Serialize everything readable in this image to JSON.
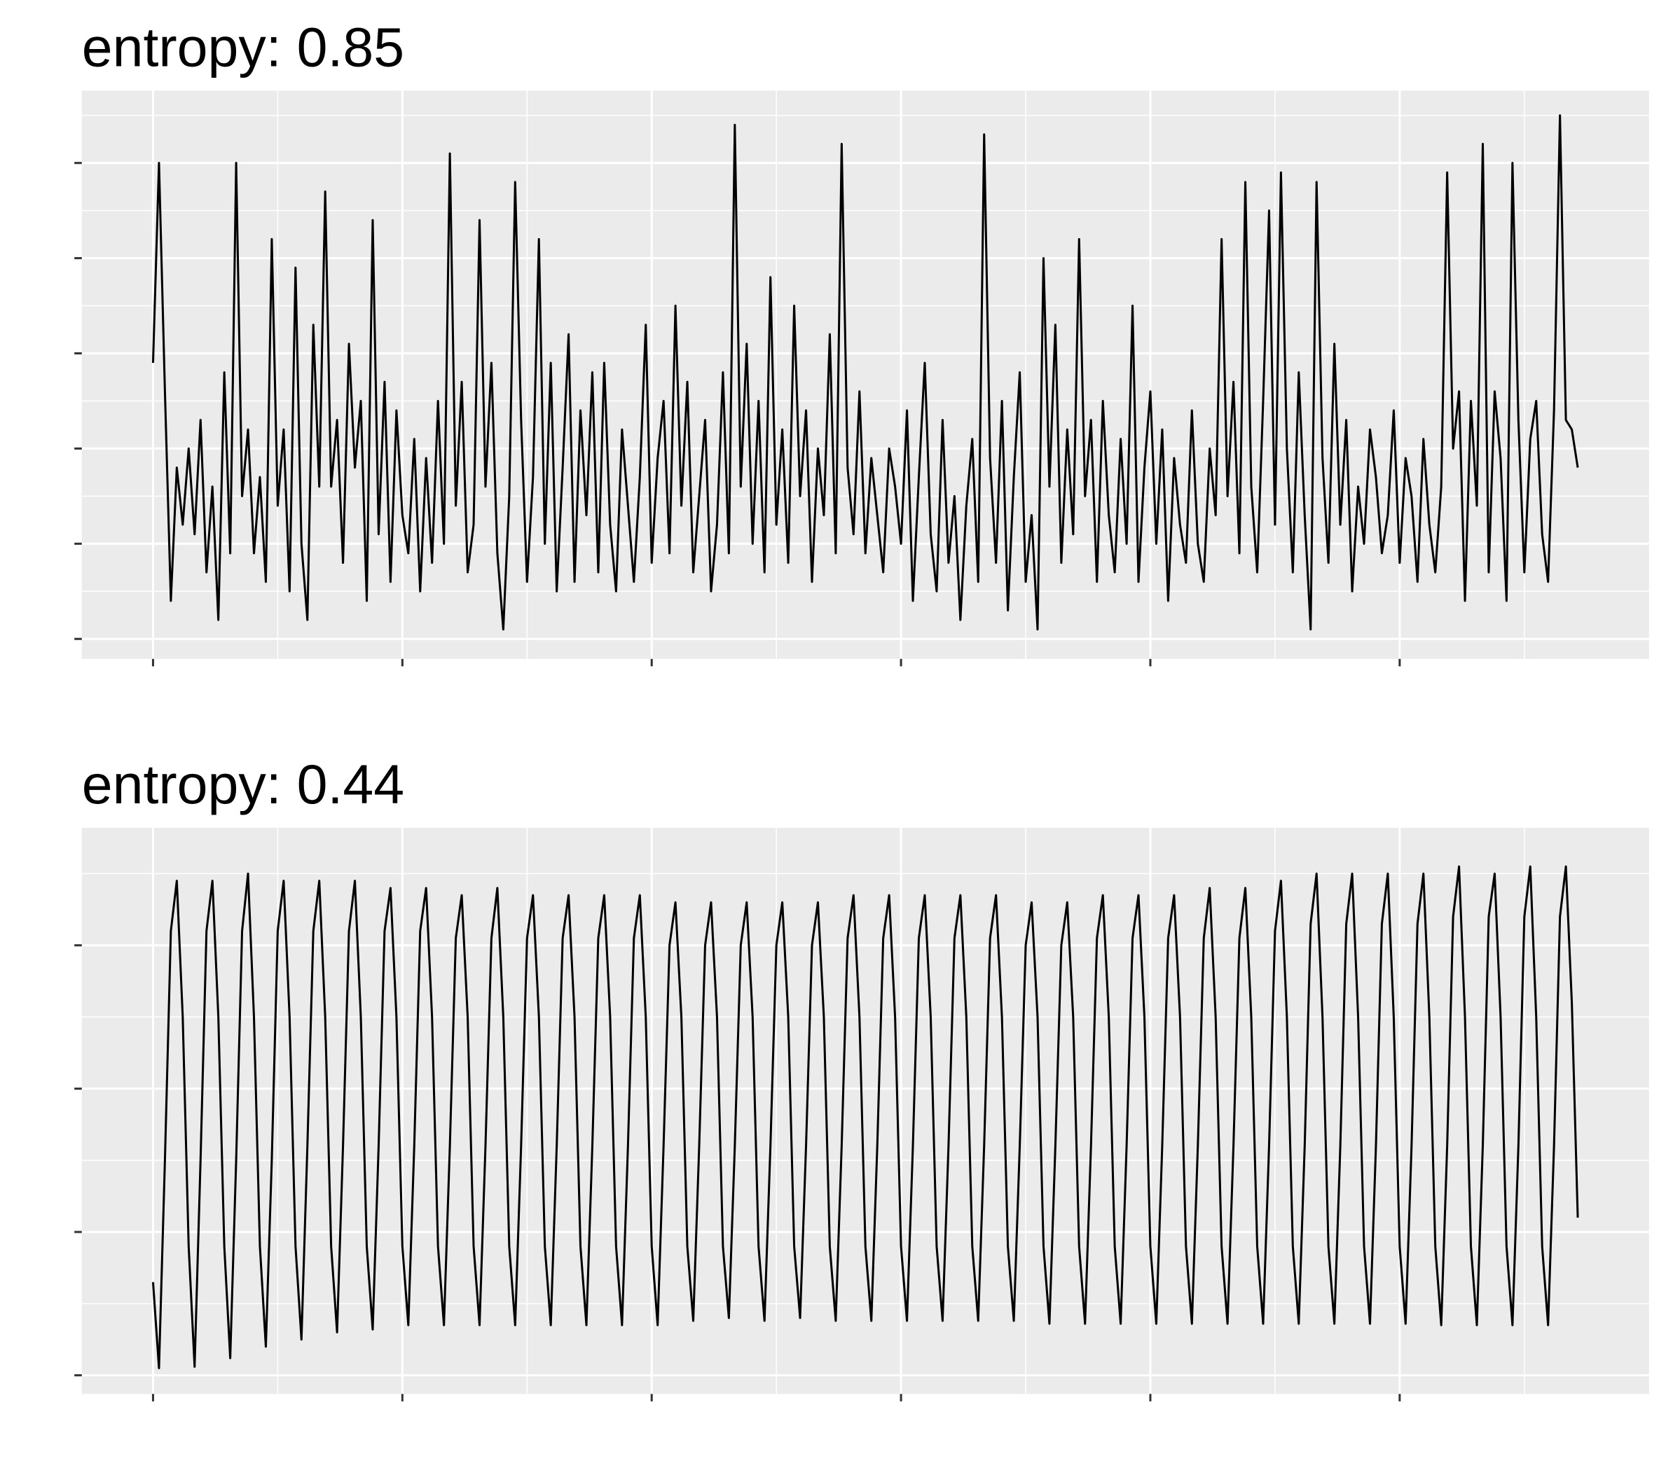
{
  "chart_data": [
    {
      "type": "line",
      "title": "entropy: 0.85",
      "color": "#000000",
      "grid": true,
      "xlim": [
        -12,
        252
      ],
      "xticks": [
        0,
        42,
        84,
        126,
        168,
        210
      ],
      "ylim": [
        -0.21,
        5.76
      ],
      "yticks": [
        0,
        1,
        2,
        3,
        4,
        5
      ],
      "values": [
        2.9,
        5.0,
        2.6,
        0.4,
        1.8,
        1.2,
        2.0,
        1.1,
        2.3,
        0.7,
        1.6,
        0.2,
        2.8,
        0.9,
        5.0,
        1.5,
        2.2,
        0.9,
        1.7,
        0.6,
        4.2,
        1.4,
        2.2,
        0.5,
        3.9,
        1.0,
        0.2,
        3.3,
        1.6,
        4.7,
        1.6,
        2.3,
        0.8,
        3.1,
        1.8,
        2.5,
        0.4,
        4.4,
        1.1,
        2.7,
        0.6,
        2.4,
        1.3,
        0.9,
        2.1,
        0.5,
        1.9,
        0.8,
        2.5,
        1.0,
        5.1,
        1.4,
        2.7,
        0.7,
        1.2,
        4.4,
        1.6,
        2.9,
        0.9,
        0.1,
        1.5,
        4.8,
        2.3,
        0.6,
        1.7,
        4.2,
        1.0,
        2.9,
        0.5,
        1.8,
        3.2,
        0.6,
        2.4,
        1.3,
        2.8,
        0.7,
        2.9,
        1.2,
        0.5,
        2.2,
        1.4,
        0.6,
        1.7,
        3.3,
        0.8,
        1.9,
        2.5,
        0.9,
        3.5,
        1.4,
        2.7,
        0.7,
        1.5,
        2.3,
        0.5,
        1.2,
        2.8,
        0.9,
        5.4,
        1.6,
        3.1,
        1.0,
        2.5,
        0.7,
        3.8,
        1.2,
        2.2,
        0.8,
        3.5,
        1.5,
        2.4,
        0.6,
        2.0,
        1.3,
        3.2,
        0.9,
        5.2,
        1.8,
        1.1,
        2.6,
        0.9,
        1.9,
        1.3,
        0.7,
        2.0,
        1.6,
        1.0,
        2.4,
        0.4,
        1.7,
        2.9,
        1.1,
        0.5,
        2.3,
        0.8,
        1.5,
        0.2,
        1.4,
        2.1,
        0.6,
        5.3,
        1.9,
        0.8,
        2.5,
        0.3,
        1.7,
        2.8,
        0.6,
        1.3,
        0.1,
        4.0,
        1.6,
        3.3,
        0.8,
        2.2,
        1.1,
        4.2,
        1.5,
        2.3,
        0.6,
        2.5,
        1.3,
        0.7,
        2.1,
        1.0,
        3.5,
        0.6,
        1.8,
        2.6,
        1.0,
        2.2,
        0.4,
        1.9,
        1.2,
        0.8,
        2.4,
        1.0,
        0.6,
        2.0,
        1.3,
        4.2,
        1.5,
        2.7,
        0.9,
        4.8,
        1.6,
        0.7,
        2.5,
        4.5,
        1.2,
        4.9,
        2.0,
        0.7,
        2.8,
        1.3,
        0.1,
        4.8,
        1.9,
        0.8,
        3.1,
        1.2,
        2.3,
        0.5,
        1.6,
        1.0,
        2.2,
        1.7,
        0.9,
        1.3,
        2.4,
        0.8,
        1.9,
        1.5,
        0.6,
        2.1,
        1.2,
        0.7,
        1.6,
        4.9,
        2.0,
        2.6,
        0.4,
        2.5,
        1.4,
        5.2,
        0.7,
        2.6,
        1.9,
        0.4,
        5.0,
        2.3,
        0.7,
        2.1,
        2.5,
        1.1,
        0.6,
        2.4,
        5.5,
        2.3,
        2.2,
        1.8
      ]
    },
    {
      "type": "line",
      "title": "entropy: 0.44",
      "color": "#000000",
      "grid": true,
      "xlim": [
        -12,
        252
      ],
      "xticks": [
        0,
        42,
        84,
        126,
        168,
        210
      ],
      "ylim": [
        -0.13,
        3.82
      ],
      "yticks": [
        0,
        1,
        2,
        3
      ],
      "values": [
        0.65,
        0.05,
        1.5,
        3.1,
        3.45,
        2.5,
        0.9,
        0.06,
        1.5,
        3.1,
        3.45,
        2.5,
        0.9,
        0.12,
        1.5,
        3.1,
        3.5,
        2.5,
        0.9,
        0.2,
        1.5,
        3.1,
        3.45,
        2.5,
        0.9,
        0.25,
        1.6,
        3.1,
        3.45,
        2.5,
        0.9,
        0.3,
        1.6,
        3.1,
        3.45,
        2.5,
        0.9,
        0.32,
        1.6,
        3.1,
        3.4,
        2.5,
        0.9,
        0.35,
        1.6,
        3.1,
        3.4,
        2.5,
        0.9,
        0.35,
        1.6,
        3.05,
        3.35,
        2.5,
        0.9,
        0.35,
        1.6,
        3.05,
        3.4,
        2.5,
        0.9,
        0.35,
        1.6,
        3.05,
        3.35,
        2.5,
        0.9,
        0.35,
        1.6,
        3.05,
        3.35,
        2.5,
        0.9,
        0.35,
        1.6,
        3.05,
        3.35,
        2.5,
        0.9,
        0.35,
        1.6,
        3.05,
        3.35,
        2.5,
        0.9,
        0.35,
        1.6,
        3.0,
        3.3,
        2.5,
        0.9,
        0.38,
        1.6,
        3.0,
        3.3,
        2.5,
        0.9,
        0.4,
        1.6,
        3.0,
        3.3,
        2.5,
        0.9,
        0.38,
        1.6,
        3.0,
        3.3,
        2.5,
        0.9,
        0.4,
        1.6,
        3.0,
        3.3,
        2.5,
        0.9,
        0.38,
        1.6,
        3.05,
        3.35,
        2.5,
        0.9,
        0.38,
        1.6,
        3.05,
        3.35,
        2.5,
        0.9,
        0.38,
        1.6,
        3.05,
        3.35,
        2.5,
        0.9,
        0.38,
        1.6,
        3.05,
        3.35,
        2.5,
        0.9,
        0.38,
        1.6,
        3.05,
        3.35,
        2.5,
        0.9,
        0.38,
        1.6,
        3.0,
        3.3,
        2.5,
        0.9,
        0.36,
        1.6,
        3.0,
        3.3,
        2.5,
        0.9,
        0.36,
        1.6,
        3.05,
        3.35,
        2.5,
        0.9,
        0.36,
        1.6,
        3.05,
        3.35,
        2.5,
        0.9,
        0.36,
        1.6,
        3.05,
        3.35,
        2.5,
        0.9,
        0.36,
        1.6,
        3.05,
        3.4,
        2.5,
        0.9,
        0.36,
        1.6,
        3.05,
        3.4,
        2.5,
        0.9,
        0.36,
        1.6,
        3.1,
        3.45,
        2.5,
        0.9,
        0.36,
        1.6,
        3.15,
        3.5,
        2.5,
        0.9,
        0.36,
        1.6,
        3.15,
        3.5,
        2.5,
        0.9,
        0.36,
        1.6,
        3.15,
        3.5,
        2.5,
        0.9,
        0.36,
        1.6,
        3.15,
        3.5,
        2.5,
        0.9,
        0.35,
        1.6,
        3.2,
        3.55,
        2.5,
        0.9,
        0.35,
        1.6,
        3.2,
        3.5,
        2.5,
        0.9,
        0.35,
        1.6,
        3.2,
        3.55,
        2.5,
        0.9,
        0.35,
        1.6,
        3.2,
        3.55,
        2.6,
        1.1
      ]
    }
  ]
}
